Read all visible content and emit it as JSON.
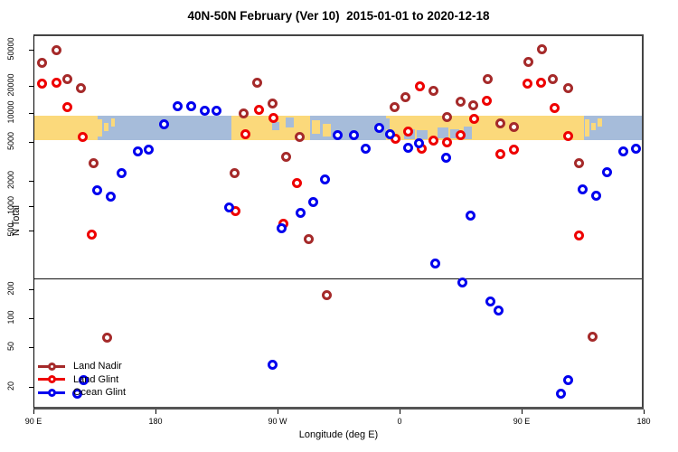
{
  "title": "40N-50N February (Ver 10)  2015-01-01 to 2020-12-18",
  "axes": {
    "y_label": "N Total",
    "x_label": "Longitude (deg E)"
  },
  "legend": [
    {
      "label": "Land Nadir",
      "color": "#A52A2A"
    },
    {
      "label": "Land Glint",
      "color": "#EE0000"
    },
    {
      "label": "Ocean Glint",
      "color": "#0000EE"
    }
  ],
  "chart_data": {
    "type": "scatter",
    "title": "40N-50N February (Ver 10)  2015-01-01 to 2020-12-18",
    "xlabel": "Longitude (deg E)",
    "ylabel": "N Total",
    "x_axis": {
      "note": "longitude axis unwrapped eastward, 90E through dateline to 180 (540)",
      "ticks": [
        {
          "label": "90 E",
          "lon": 90
        },
        {
          "label": "180",
          "lon": 180
        },
        {
          "label": "90 W",
          "lon": 270
        },
        {
          "label": "0",
          "lon": 360
        },
        {
          "label": "90 E",
          "lon": 450
        },
        {
          "label": "180",
          "lon": 540
        }
      ]
    },
    "y_axis": {
      "scale": "log",
      "ticks": [
        20,
        50,
        100,
        200,
        500,
        1000,
        2000,
        5000,
        10000,
        20000,
        50000
      ],
      "range": [
        13,
        60000
      ],
      "break_line_n": 240
    },
    "series": [
      {
        "name": "Land Nadir",
        "color": "#A52A2A",
        "points_format": "[lon_degE_unwrapped, n_total]",
        "points": [
          [
            107,
            50000
          ],
          [
            96,
            36000
          ],
          [
            115,
            24000
          ],
          [
            125,
            19000
          ],
          [
            134,
            3000
          ],
          [
            144,
            62
          ],
          [
            245,
            10000
          ],
          [
            255,
            21500
          ],
          [
            266,
            12600
          ],
          [
            276,
            3500
          ],
          [
            286,
            5600
          ],
          [
            238,
            2370
          ],
          [
            293,
            440
          ],
          [
            306,
            175
          ],
          [
            356,
            11700
          ],
          [
            364,
            14900
          ],
          [
            385,
            17800
          ],
          [
            395,
            9100
          ],
          [
            405,
            13300
          ],
          [
            414,
            12300
          ],
          [
            425,
            23600
          ],
          [
            434,
            7700
          ],
          [
            444,
            7100
          ],
          [
            455,
            37000
          ],
          [
            465,
            51000
          ],
          [
            473,
            24000
          ],
          [
            484,
            19000
          ],
          [
            492,
            3000
          ],
          [
            502,
            63
          ]
        ]
      },
      {
        "name": "Land Glint",
        "color": "#EE0000",
        "points_format": "[lon_degE_unwrapped, n_total]",
        "points": [
          [
            96,
            21400
          ],
          [
            107,
            21900
          ],
          [
            115,
            11500
          ],
          [
            126,
            5640
          ],
          [
            133,
            470
          ],
          [
            246,
            6000
          ],
          [
            256,
            10800
          ],
          [
            267,
            8800
          ],
          [
            284,
            1860
          ],
          [
            274,
            610
          ],
          [
            239,
            860
          ],
          [
            375,
            20000
          ],
          [
            357,
            5350
          ],
          [
            366,
            6430
          ],
          [
            376,
            4210
          ],
          [
            385,
            5110
          ],
          [
            395,
            4940
          ],
          [
            405,
            5860
          ],
          [
            415,
            8590
          ],
          [
            424,
            13600
          ],
          [
            434,
            3760
          ],
          [
            444,
            4160
          ],
          [
            454,
            21300
          ],
          [
            464,
            21900
          ],
          [
            474,
            11250
          ],
          [
            484,
            5650
          ],
          [
            492,
            460
          ]
        ]
      },
      {
        "name": "Ocean Glint",
        "color": "#0000EE",
        "points_format": "[lon_degE_unwrapped, n_total]",
        "points": [
          [
            196,
            12000
          ],
          [
            206,
            11900
          ],
          [
            216,
            10500
          ],
          [
            225,
            10700
          ],
          [
            186,
            7600
          ],
          [
            167,
            4000
          ],
          [
            175,
            4180
          ],
          [
            155,
            2400
          ],
          [
            137,
            1550
          ],
          [
            147,
            1290
          ],
          [
            127,
            23
          ],
          [
            122,
            17
          ],
          [
            234,
            950
          ],
          [
            296,
            1130
          ],
          [
            287,
            820
          ],
          [
            273,
            540
          ],
          [
            305,
            2050
          ],
          [
            314,
            5800
          ],
          [
            266,
            33
          ],
          [
            326,
            5860
          ],
          [
            335,
            4210
          ],
          [
            345,
            6930
          ],
          [
            353,
            6000
          ],
          [
            366,
            4310
          ],
          [
            374,
            4830
          ],
          [
            394,
            3430
          ],
          [
            386,
            300
          ],
          [
            412,
            770
          ],
          [
            406,
            221
          ],
          [
            427,
            149
          ],
          [
            433,
            120
          ],
          [
            495,
            1570
          ],
          [
            505,
            1320
          ],
          [
            513,
            2430
          ],
          [
            525,
            4000
          ],
          [
            534,
            4210
          ],
          [
            484,
            23
          ],
          [
            479,
            17
          ]
        ]
      }
    ],
    "map_band": {
      "description": "40N-50N land/ocean strip drawn across plot near N=10000..5000",
      "land_color": "#FBD97B",
      "ocean_color": "#A6BCDA",
      "segments": [
        {
          "from": 90,
          "to": 137,
          "type": "land"
        },
        {
          "from": 137,
          "to": 236,
          "type": "ocean"
        },
        {
          "from": 236,
          "to": 294,
          "type": "land"
        },
        {
          "from": 294,
          "to": 350,
          "type": "ocean"
        },
        {
          "from": 350,
          "to": 496,
          "type": "land"
        },
        {
          "from": 496,
          "to": 540,
          "type": "ocean"
        }
      ],
      "patches": [
        {
          "from": 137.5,
          "to": 140.5,
          "type": "land",
          "top": 0.15,
          "bot": 0.85
        },
        {
          "from": 142,
          "to": 145,
          "type": "land",
          "top": 0.3,
          "bot": 0.65
        },
        {
          "from": 147,
          "to": 150,
          "type": "land",
          "top": 0.1,
          "bot": 0.45
        },
        {
          "from": 266,
          "to": 271.5,
          "type": "ocean",
          "top": 0.25,
          "bot": 0.6
        },
        {
          "from": 276,
          "to": 282,
          "type": "ocean",
          "top": 0.08,
          "bot": 0.5
        },
        {
          "from": 295,
          "to": 301,
          "type": "land",
          "top": 0.2,
          "bot": 0.75
        },
        {
          "from": 303.5,
          "to": 309,
          "type": "land",
          "top": 0.35,
          "bot": 0.85
        },
        {
          "from": 350,
          "to": 352.5,
          "type": "ocean",
          "top": 0.1,
          "bot": 0.55
        },
        {
          "from": 363,
          "to": 371,
          "type": "ocean",
          "top": 0.55,
          "bot": 1.0
        },
        {
          "from": 372.5,
          "to": 380.5,
          "type": "ocean",
          "top": 0.6,
          "bot": 1.0
        },
        {
          "from": 388,
          "to": 396,
          "type": "ocean",
          "top": 0.5,
          "bot": 0.95
        },
        {
          "from": 397.5,
          "to": 404,
          "type": "ocean",
          "top": 0.55,
          "bot": 0.95
        },
        {
          "from": 407,
          "to": 413.5,
          "type": "ocean",
          "top": 0.45,
          "bot": 1.0
        },
        {
          "from": 496.5,
          "to": 500,
          "type": "land",
          "top": 0.15,
          "bot": 0.85
        },
        {
          "from": 501.5,
          "to": 504.5,
          "type": "land",
          "top": 0.3,
          "bot": 0.6
        },
        {
          "from": 506,
          "to": 509.5,
          "type": "land",
          "top": 0.12,
          "bot": 0.45
        }
      ]
    }
  }
}
